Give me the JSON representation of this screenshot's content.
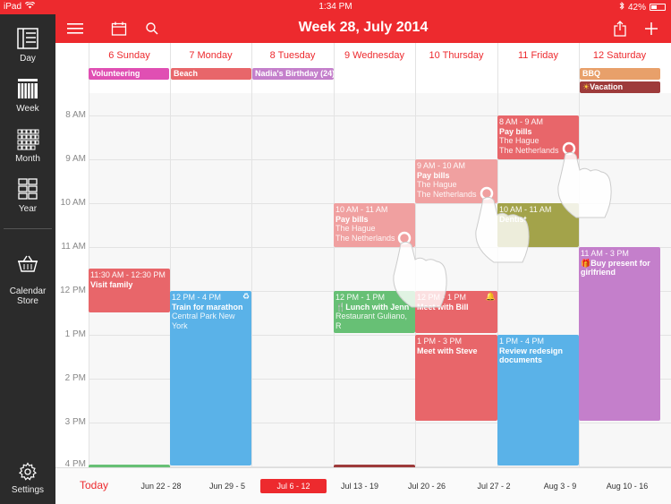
{
  "status": {
    "device": "iPad",
    "time": "1:34 PM",
    "battery": "42%",
    "battery_level": 0.42
  },
  "sidebar": {
    "items": [
      {
        "label": "Day",
        "icon": "day-view-icon"
      },
      {
        "label": "Week",
        "icon": "week-view-icon"
      },
      {
        "label": "Month",
        "icon": "month-view-icon"
      },
      {
        "label": "Year",
        "icon": "year-view-icon"
      },
      {
        "label": "Calendar\nStore",
        "icon": "calendar-store-icon"
      },
      {
        "label": "Settings",
        "icon": "gear-icon"
      }
    ]
  },
  "toolbar": {
    "title": "Week 28, July 2014"
  },
  "days": [
    {
      "label": "6 Sunday"
    },
    {
      "label": "7 Monday"
    },
    {
      "label": "8 Tuesday"
    },
    {
      "label": "9 Wednesday"
    },
    {
      "label": "10 Thursday"
    },
    {
      "label": "11 Friday"
    },
    {
      "label": "12 Saturday"
    }
  ],
  "allday_events": [
    {
      "title": "Volunteering",
      "color": "#e04fb3"
    },
    {
      "title": "Beach",
      "color": "#e8666a"
    },
    {
      "title": "Nadia's Birthday (24)",
      "color": "#c47fcb"
    },
    {
      "title": "BBQ",
      "color": "#e8a06a"
    },
    {
      "title": "Vacation",
      "color": "#9e3b3b"
    }
  ],
  "hours": [
    "8 AM",
    "9 AM",
    "10 AM",
    "11 AM",
    "12 PM",
    "1 PM",
    "2 PM",
    "3 PM",
    "4 PM"
  ],
  "events": [
    {
      "time": "11:30 AM - 12:30 PM",
      "title": "Visit family",
      "location": "",
      "color": "#e8666a"
    },
    {
      "time": "12 PM - 4 PM",
      "title": "Train for marathon",
      "location": "Central Park New York",
      "color": "#5ab2e8"
    },
    {
      "time": "10 AM - 11 AM",
      "title": "Pay bills",
      "location": "The Hague",
      "location2": "The Netherlands",
      "color": "#f0a0a0"
    },
    {
      "time": "12 PM - 1 PM",
      "title": "Lunch with Jenn",
      "location": "Restaurant Guliano, R",
      "color": "#67c075"
    },
    {
      "time": "9 AM - 10 AM",
      "title": "Pay bills",
      "location": "The Hague",
      "location2": "The Netherlands",
      "color": "#f0a0a0"
    },
    {
      "time": "12 PM - 1 PM",
      "title": "Meet with Bill",
      "location": "",
      "color": "#e8666a"
    },
    {
      "time": "1 PM - 3 PM",
      "title": "Meet with Steve",
      "location": "",
      "color": "#e8666a"
    },
    {
      "time": "8 AM - 9 AM",
      "title": "Pay bills",
      "location": "The Hague",
      "location2": "The Netherlands",
      "color": "#e8666a"
    },
    {
      "time": "10 AM - 11 AM",
      "title": "Dentist",
      "location": "",
      "color": "#a3a34a"
    },
    {
      "time": "1 PM - 4 PM",
      "title": "Review redesign documents",
      "location": "",
      "color": "#5ab2e8"
    },
    {
      "time": "11 AM - 3 PM",
      "title": "Buy present for girlfriend",
      "location": "",
      "color": "#c47fcb"
    }
  ],
  "weekbar": {
    "today_label": "Today",
    "weeks": [
      "Jun 22 - 28",
      "Jun 29 - 5",
      "Jul 6 - 12",
      "Jul 13 - 19",
      "Jul 20 - 26",
      "Jul 27 - 2",
      "Aug 3 - 9",
      "Aug 10 - 16"
    ],
    "selected": "Jul 6 - 12"
  },
  "colors": {
    "accent": "#ed2a2e",
    "sidebar": "#2b2b2b"
  }
}
